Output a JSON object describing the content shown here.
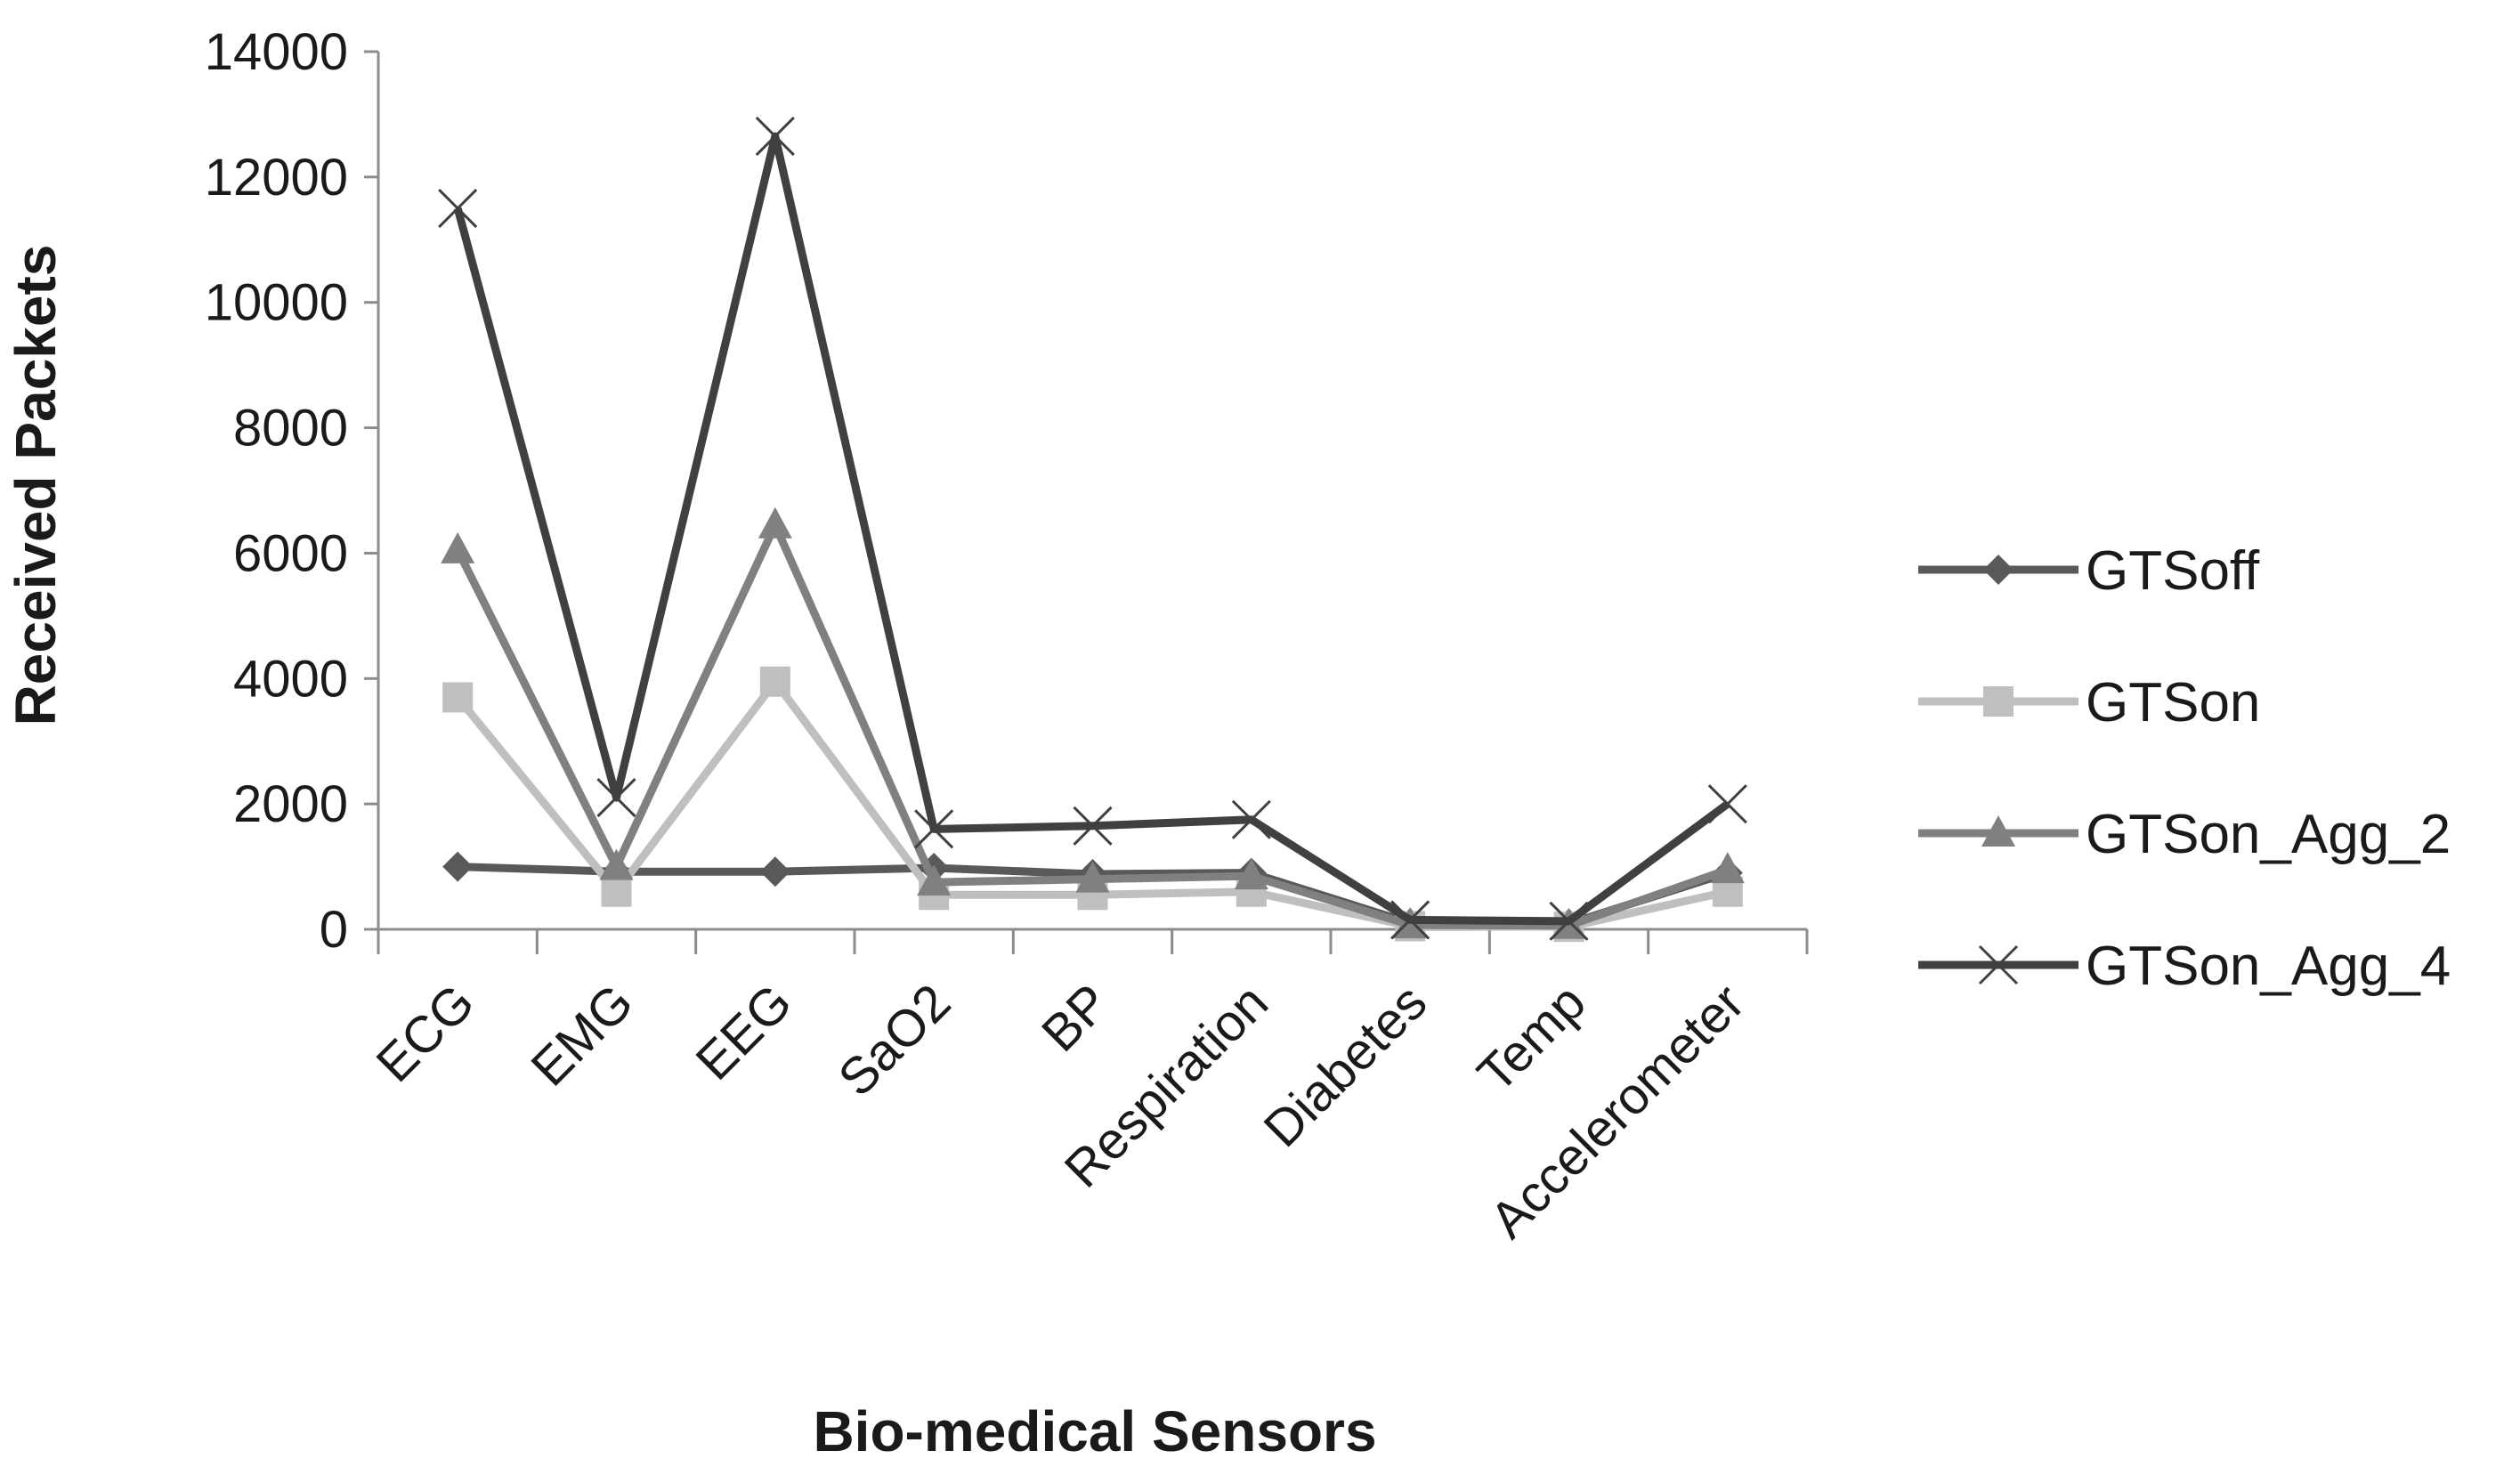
{
  "chart_data": {
    "type": "line",
    "categories": [
      "ECG",
      "EMG",
      "EEG",
      "SaO2",
      "BP",
      "Respiration",
      "Diabetes",
      "Temp",
      "Accelerometer"
    ],
    "xlabel": "Bio-medical Sensors",
    "ylabel": "Received Packets",
    "ylim": [
      0,
      14000
    ],
    "yticks": [
      0,
      2000,
      4000,
      6000,
      8000,
      10000,
      12000,
      14000
    ],
    "grid": false,
    "legend_position": "right",
    "series": [
      {
        "name": "GTSoff",
        "color": "#595959",
        "marker": "diamond",
        "values": [
          1000,
          920,
          920,
          980,
          880,
          900,
          100,
          90,
          900
        ]
      },
      {
        "name": "GTSon",
        "color": "#bfbfbf",
        "marker": "square",
        "values": [
          3700,
          600,
          3950,
          550,
          550,
          600,
          50,
          40,
          600
        ]
      },
      {
        "name": "GTSon_Agg_2",
        "color": "#808080",
        "marker": "triangle",
        "values": [
          6050,
          1000,
          6450,
          750,
          800,
          850,
          70,
          60,
          950
        ]
      },
      {
        "name": "GTSon_Agg_4",
        "color": "#404040",
        "marker": "x",
        "values": [
          11500,
          2100,
          12650,
          1600,
          1650,
          1750,
          150,
          130,
          2000
        ]
      }
    ]
  }
}
